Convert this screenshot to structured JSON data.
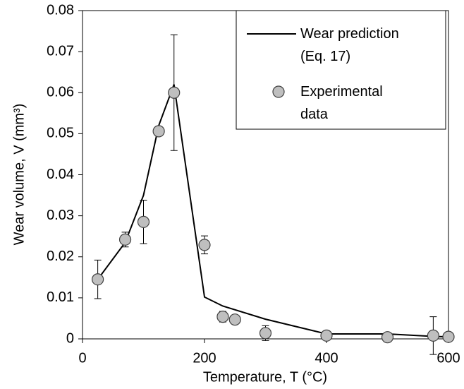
{
  "chart_data": {
    "type": "line",
    "x_label": "Temperature, T (°C)",
    "y_label": "Wear volume, V (mm³)",
    "xlim": [
      0,
      600
    ],
    "xticks": [
      0,
      200,
      400,
      600
    ],
    "ylim": [
      0,
      0.08
    ],
    "yticks": [
      0,
      0.01,
      0.02,
      0.03,
      0.04,
      0.05,
      0.06,
      0.07,
      0.08
    ],
    "grid": false,
    "legend": "upper right",
    "series": [
      {
        "name": "Wear prediction (Eq. 17)",
        "type": "line",
        "color": "#000000",
        "x": [
          25,
          70,
          100,
          125,
          150,
          200,
          230,
          300,
          400,
          500,
          575,
          600
        ],
        "values": [
          0.0145,
          0.0235,
          0.035,
          0.052,
          0.062,
          0.0102,
          0.008,
          0.0048,
          0.0012,
          0.0012,
          0.0006,
          0.0005
        ]
      },
      {
        "name": "Experimental data",
        "type": "scatter",
        "color": "#bfbfbf",
        "x": [
          25,
          70,
          100,
          125,
          150,
          200,
          230,
          250,
          300,
          400,
          500,
          575,
          600
        ],
        "values": [
          0.0145,
          0.0242,
          0.0285,
          0.0506,
          0.06,
          0.0229,
          0.0054,
          0.0047,
          0.0014,
          0.0008,
          0.0004,
          0.0008,
          0.0005
        ],
        "errors": [
          0.0047,
          0.0018,
          0.0053,
          null,
          0.0141,
          0.0022,
          0.0013,
          null,
          0.0018,
          null,
          null,
          0.0046,
          null
        ]
      }
    ]
  }
}
